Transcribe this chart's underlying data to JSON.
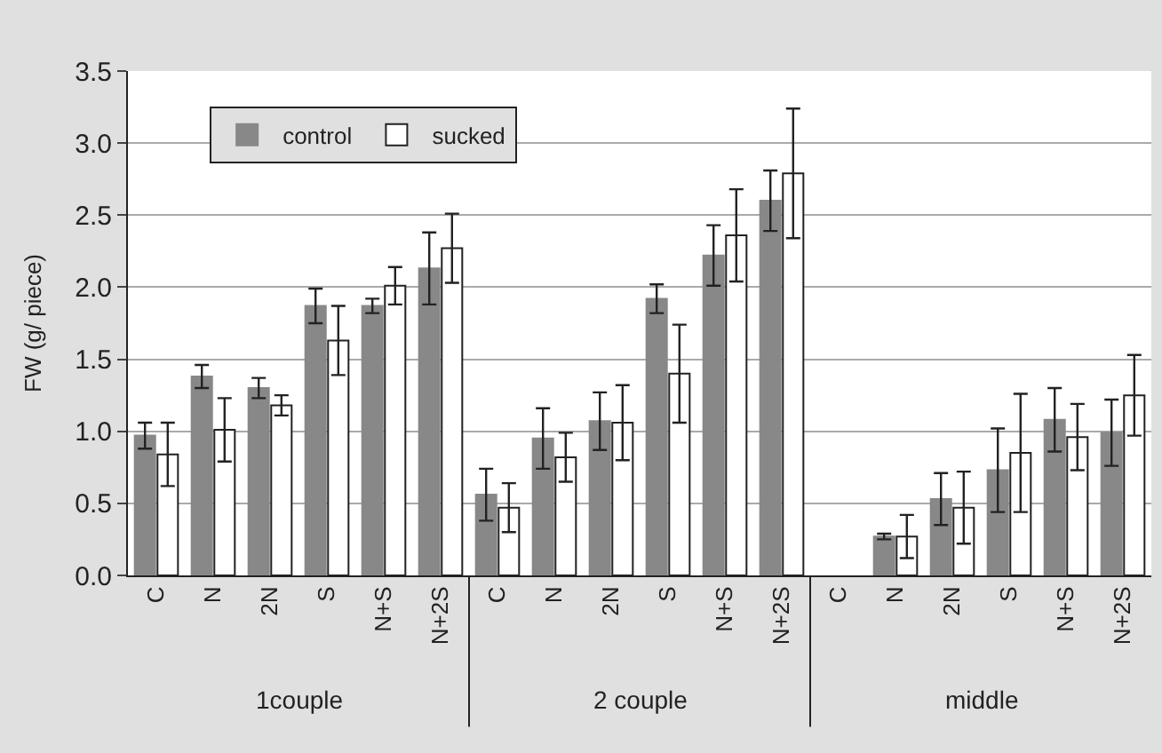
{
  "chart_data": {
    "type": "bar",
    "ylabel": "FW (g/ piece)",
    "categories": [
      "C",
      "N",
      "2N",
      "S",
      "N+S",
      "N+2S",
      "C",
      "N",
      "2N",
      "S",
      "N+S",
      "N+2S",
      "C",
      "N",
      "2N",
      "S",
      "N+S",
      "N+2S"
    ],
    "annotations": [
      "1couple",
      "2 couple",
      "middle"
    ],
    "series": [
      {
        "name": "control",
        "color": "#888888",
        "values": [
          0.97,
          1.38,
          1.3,
          1.87,
          1.87,
          2.13,
          0.56,
          0.95,
          1.07,
          1.92,
          2.22,
          2.6,
          null,
          0.27,
          0.53,
          0.73,
          1.08,
          0.99
        ],
        "errors": [
          0.09,
          0.08,
          0.07,
          0.12,
          0.05,
          0.25,
          0.18,
          0.21,
          0.2,
          0.1,
          0.21,
          0.21,
          null,
          0.02,
          0.18,
          0.29,
          0.22,
          0.23
        ]
      },
      {
        "name": "sucked",
        "color": "#ffffff",
        "values": [
          0.84,
          1.01,
          1.18,
          1.63,
          2.01,
          2.27,
          0.47,
          0.82,
          1.06,
          1.4,
          2.36,
          2.79,
          null,
          0.27,
          0.47,
          0.85,
          0.96,
          1.25
        ],
        "errors": [
          0.22,
          0.22,
          0.07,
          0.24,
          0.13,
          0.24,
          0.17,
          0.17,
          0.26,
          0.34,
          0.32,
          0.45,
          null,
          0.15,
          0.25,
          0.41,
          0.23,
          0.28
        ]
      }
    ],
    "ylim": [
      0,
      3.5
    ],
    "yticks": [
      {
        "value": 0,
        "label": "0.0"
      },
      0.5,
      {
        "value": 1,
        "label": "1.0"
      },
      1.5,
      {
        "value": 2,
        "label": "2.0"
      },
      2.5,
      {
        "value": 3,
        "label": "3.0"
      },
      3.5
    ],
    "grid": "y",
    "legend": "top left"
  }
}
